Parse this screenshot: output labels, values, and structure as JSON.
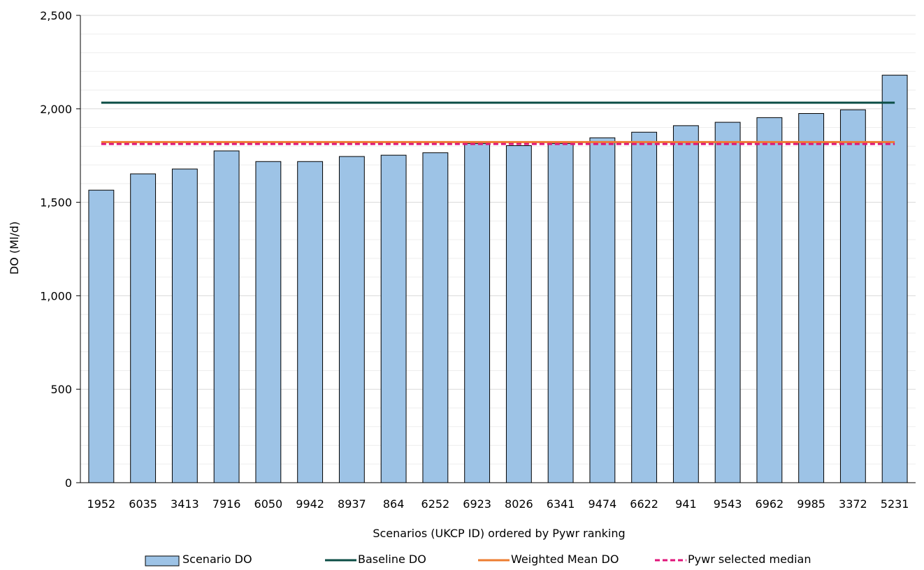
{
  "chart_data": {
    "type": "bar",
    "title": "",
    "xlabel": "Scenarios (UKCP ID) ordered by Pywr ranking",
    "ylabel": "DO (Ml/d)",
    "ylim": [
      0,
      2500
    ],
    "yticks": [
      0,
      500,
      1000,
      1500,
      2000,
      2500
    ],
    "ytick_labels": [
      "0",
      "500",
      "1,000",
      "1,500",
      "2,000",
      "2,500"
    ],
    "grid": true,
    "legend_position": "bottom",
    "categories": [
      "1952",
      "6035",
      "3413",
      "7916",
      "6050",
      "9942",
      "8937",
      "864",
      "6252",
      "6923",
      "8026",
      "6341",
      "9474",
      "6622",
      "941",
      "9543",
      "6962",
      "9985",
      "3372",
      "5231"
    ],
    "series": [
      {
        "name": "Scenario DO",
        "kind": "bar",
        "color": "#9DC3E6",
        "values": [
          1565,
          1652,
          1678,
          1775,
          1718,
          1718,
          1745,
          1752,
          1765,
          1815,
          1803,
          1815,
          1845,
          1875,
          1910,
          1928,
          1953,
          1975,
          1995,
          2180
        ]
      },
      {
        "name": "Baseline DO",
        "kind": "hline",
        "color": "#0B4D45",
        "value": 2033
      },
      {
        "name": "Weighted Mean DO",
        "kind": "hline",
        "color": "#ED7D31",
        "value": 1822
      },
      {
        "name": "Pywr selected median",
        "kind": "hline",
        "color": "#E0157A",
        "dashed": true,
        "value": 1812
      }
    ]
  }
}
